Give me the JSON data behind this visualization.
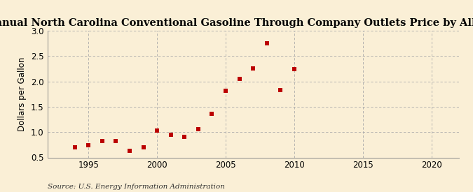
{
  "title": "Annual North Carolina Conventional Gasoline Through Company Outlets Price by All Sellers",
  "ylabel": "Dollars per Gallon",
  "source": "Source: U.S. Energy Information Administration",
  "years": [
    1994,
    1995,
    1996,
    1997,
    1998,
    1999,
    2000,
    2001,
    2002,
    2003,
    2004,
    2005,
    2006,
    2007,
    2008,
    2009,
    2010
  ],
  "values": [
    0.7,
    0.74,
    0.82,
    0.82,
    0.63,
    0.7,
    1.03,
    0.95,
    0.9,
    1.06,
    1.36,
    1.81,
    2.05,
    2.25,
    2.75,
    1.83,
    2.24
  ],
  "marker_color": "#bb0000",
  "bg_color": "#faefd6",
  "grid_color": "#aaaaaa",
  "xlim": [
    1992,
    2022
  ],
  "ylim": [
    0.5,
    3.0
  ],
  "yticks": [
    0.5,
    1.0,
    1.5,
    2.0,
    2.5,
    3.0
  ],
  "xticks": [
    1995,
    2000,
    2005,
    2010,
    2015,
    2020
  ],
  "title_fontsize": 10.5,
  "label_fontsize": 8.5,
  "tick_fontsize": 8.5,
  "source_fontsize": 7.5
}
